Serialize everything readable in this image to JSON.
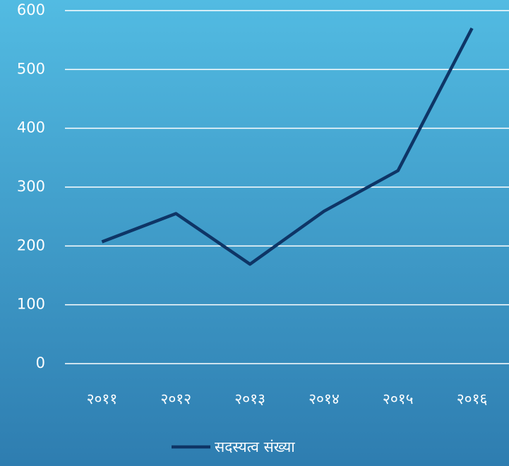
{
  "chart_data": {
    "type": "line",
    "categories": [
      "२०११",
      "२०१२",
      "२०१३",
      "२०१४",
      "२०१५",
      "२०१६"
    ],
    "series": [
      {
        "name": "सदस्यत्व संख्या",
        "color": "#0e3566",
        "values": [
          207,
          255,
          169,
          259,
          328,
          570
        ]
      }
    ],
    "ylim": [
      0,
      600
    ],
    "yticks": [
      0,
      100,
      200,
      300,
      400,
      500,
      600
    ],
    "grid": true,
    "legend": "bottom"
  }
}
